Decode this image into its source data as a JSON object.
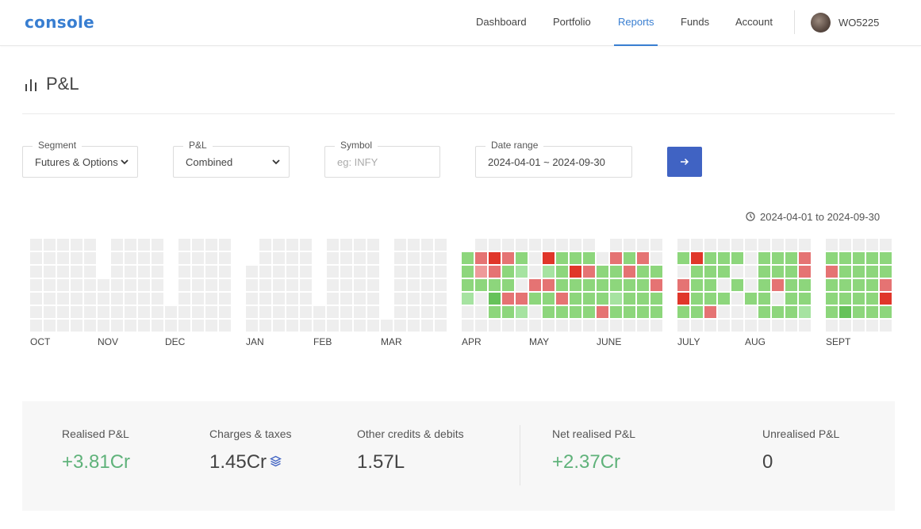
{
  "header": {
    "logo": "console",
    "nav": [
      {
        "label": "Dashboard",
        "active": false
      },
      {
        "label": "Portfolio",
        "active": false
      },
      {
        "label": "Reports",
        "active": true
      },
      {
        "label": "Funds",
        "active": false
      },
      {
        "label": "Account",
        "active": false
      }
    ],
    "user_id": "WO5225"
  },
  "page": {
    "title": "P&L",
    "icon": "bar-chart-icon"
  },
  "filters": {
    "segment": {
      "label": "Segment",
      "value": "Futures & Options"
    },
    "pnl": {
      "label": "P&L",
      "value": "Combined"
    },
    "symbol": {
      "label": "Symbol",
      "placeholder": "eg: INFY",
      "value": ""
    },
    "date_range": {
      "label": "Date range",
      "value": "2024-04-01 ~ 2024-09-30"
    },
    "submit_icon": "arrow-right-icon"
  },
  "heatmap": {
    "range_label": "2024-04-01 to 2024-09-30",
    "months": [
      "OCT",
      "NOV",
      "DEC",
      "JAN",
      "FEB",
      "MAR",
      "APR",
      "MAY",
      "JUNE",
      "JULY",
      "AUG",
      "SEPT"
    ],
    "colors": {
      "empty": "#eeeeee",
      "profit_light": "#a6e3a1",
      "profit": "#8dd67c",
      "profit_strong": "#66c25a",
      "loss_light": "#ee9a9a",
      "loss": "#e57373",
      "loss_strong": "#e0362a"
    }
  },
  "summary": {
    "realised": {
      "label": "Realised P&L",
      "value": "+3.81Cr",
      "positive": true
    },
    "charges": {
      "label": "Charges & taxes",
      "value": "1.45Cr",
      "icon": "layers-icon"
    },
    "other": {
      "label": "Other credits & debits",
      "value": "1.57L"
    },
    "net": {
      "label": "Net realised P&L",
      "value": "+2.37Cr",
      "positive": true
    },
    "unrealised": {
      "label": "Unrealised P&L",
      "value": "0"
    }
  }
}
